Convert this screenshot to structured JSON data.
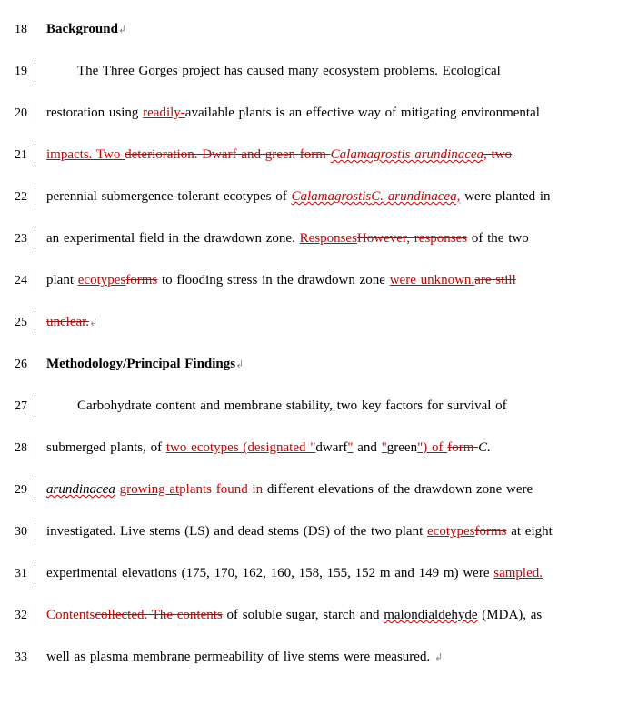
{
  "colors": {
    "insert": "#cc0000",
    "text": "#000000",
    "wavy": "#cc0000",
    "background": "#ffffff"
  },
  "typography": {
    "font_family": "Times New Roman",
    "font_size_pt": 12,
    "line_spacing": "double"
  },
  "lines": [
    {
      "n": "18",
      "bar": false,
      "kind": "heading",
      "runs": [
        {
          "t": "Background",
          "cls": "bold"
        },
        {
          "t": "↲",
          "cls": "endmark"
        }
      ]
    },
    {
      "n": "19",
      "bar": true,
      "indent": true,
      "runs": [
        {
          "t": "The Three Gorges project has caused many ecosystem problems.  Ecological"
        }
      ]
    },
    {
      "n": "20",
      "bar": true,
      "runs": [
        {
          "t": "restoration using "
        },
        {
          "t": "readily-",
          "cls": "red uline"
        },
        {
          "t": "available plants is an effective way of mitigating environmental"
        }
      ]
    },
    {
      "n": "21",
      "bar": true,
      "runs": [
        {
          "t": "impacts. Two ",
          "cls": "red uline"
        },
        {
          "t": "deterioration. Dwarf and green form ",
          "cls": "red strike"
        },
        {
          "t": "Calamagrostis arundinacea",
          "cls": "red strike italic wavy"
        },
        {
          "t": ", two ",
          "cls": "red strike"
        }
      ]
    },
    {
      "n": "22",
      "bar": true,
      "runs": [
        {
          "t": "perennial submergence-tolerant ecotypes of "
        },
        {
          "t": "Calamagrostis",
          "cls": "italic red uline wavy"
        },
        {
          "t": "C. arundinacea,",
          "cls": "italic red strike wavy"
        },
        {
          "t": " were planted in"
        }
      ]
    },
    {
      "n": "23",
      "bar": true,
      "runs": [
        {
          "t": "an experimental field in the drawdown zone. "
        },
        {
          "t": "Responses",
          "cls": "red uline"
        },
        {
          "t": "However, responses",
          "cls": "red strike"
        },
        {
          "t": " of the two"
        }
      ]
    },
    {
      "n": "24",
      "bar": true,
      "runs": [
        {
          "t": "plant "
        },
        {
          "t": "ecotypes",
          "cls": "red uline"
        },
        {
          "t": "forms",
          "cls": "red strike"
        },
        {
          "t": " to flooding stress in the drawdown zone "
        },
        {
          "t": "were unknown.",
          "cls": "red uline"
        },
        {
          "t": "are still ",
          "cls": "red strike"
        }
      ]
    },
    {
      "n": "25",
      "bar": true,
      "runs": [
        {
          "t": "unclear.",
          "cls": "red strike"
        },
        {
          "t": "↲",
          "cls": "endmark"
        }
      ]
    },
    {
      "n": "26",
      "bar": false,
      "kind": "heading",
      "runs": [
        {
          "t": "Methodology/Principal Findings",
          "cls": "bold"
        },
        {
          "t": "↲",
          "cls": "endmark"
        }
      ]
    },
    {
      "n": "27",
      "bar": true,
      "indent": true,
      "runs": [
        {
          "t": "Carbohydrate content and membrane stability, two key factors for survival of"
        }
      ]
    },
    {
      "n": "28",
      "bar": true,
      "runs": [
        {
          "t": "submerged plants, of "
        },
        {
          "t": "two ecotypes (designated \"",
          "cls": "red uline"
        },
        {
          "t": "dwarf"
        },
        {
          "t": "\"",
          "cls": "red uline"
        },
        {
          "t": " and "
        },
        {
          "t": "\"",
          "cls": "red uline"
        },
        {
          "t": "green"
        },
        {
          "t": "\") of ",
          "cls": "red uline"
        },
        {
          "t": "form ",
          "cls": "red strike"
        },
        {
          "t": "C.",
          "cls": "italic"
        }
      ]
    },
    {
      "n": "29",
      "bar": true,
      "runs": [
        {
          "t": "arundinacea",
          "cls": "italic wavy"
        },
        {
          "t": " "
        },
        {
          "t": "growing at",
          "cls": "red uline"
        },
        {
          "t": "plants found in",
          "cls": "red strike"
        },
        {
          "t": " different elevations of the drawdown zone were"
        }
      ]
    },
    {
      "n": "30",
      "bar": true,
      "runs": [
        {
          "t": "investigated. Live stems (LS) and dead stems (DS) of the two plant "
        },
        {
          "t": "ecotypes",
          "cls": "red uline"
        },
        {
          "t": "forms",
          "cls": "red strike"
        },
        {
          "t": " at eight"
        }
      ]
    },
    {
      "n": "31",
      "bar": true,
      "runs": [
        {
          "t": "experimental elevations (175, 170, 162, 160, 158, 155, 152 m and 149 m) were "
        },
        {
          "t": "sampled. ",
          "cls": "red uline"
        }
      ]
    },
    {
      "n": "32",
      "bar": true,
      "runs": [
        {
          "t": "Contents",
          "cls": "red uline"
        },
        {
          "t": "collected. The contents",
          "cls": "red strike"
        },
        {
          "t": " of soluble sugar, starch and "
        },
        {
          "t": "malondialdehyde",
          "cls": "wavy"
        },
        {
          "t": " (MDA), as"
        }
      ]
    },
    {
      "n": "33",
      "bar": false,
      "runs": [
        {
          "t": "well as plasma membrane permeability of live stems were measured. "
        },
        {
          "t": "↲",
          "cls": "endmark"
        }
      ]
    }
  ]
}
